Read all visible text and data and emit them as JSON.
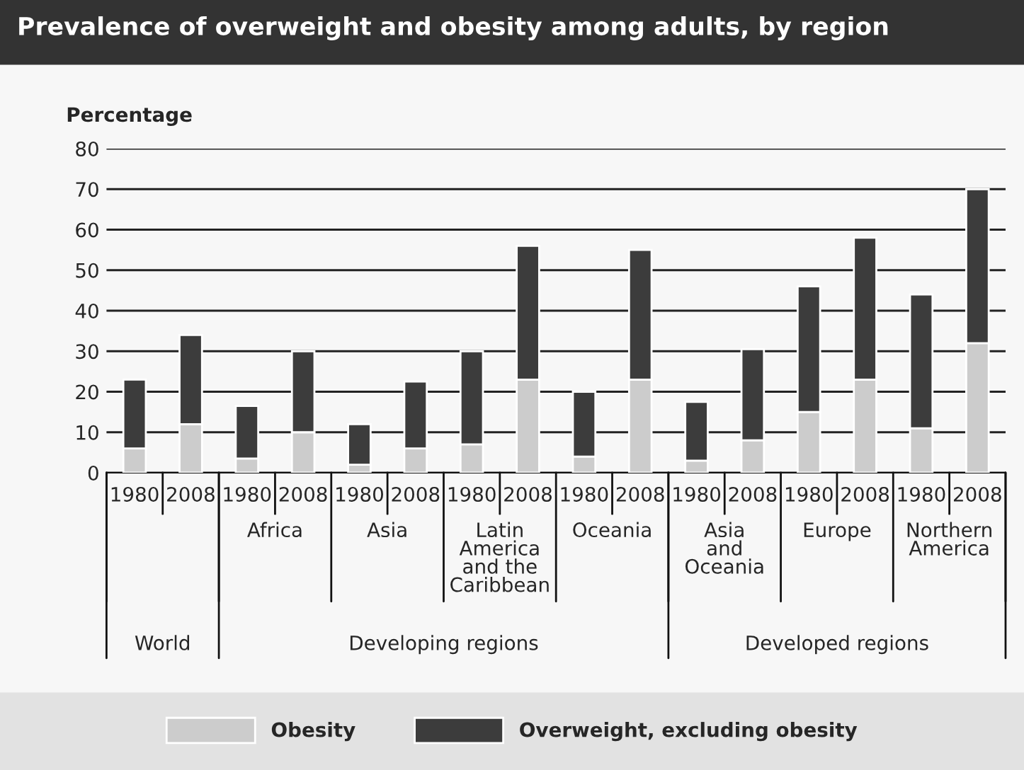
{
  "chart_data": {
    "type": "bar",
    "title": "Prevalence of overweight and obesity among adults, by region",
    "ylabel": "Percentage",
    "categories": [
      "1980",
      "2008",
      "1980",
      "2008",
      "1980",
      "2008",
      "1980",
      "2008",
      "1980",
      "2008",
      "1980",
      "2008",
      "1980",
      "2008",
      "1980",
      "2008"
    ],
    "stacked": true,
    "series": [
      {
        "name": "Obesity",
        "color": "#cccccc",
        "values": [
          6,
          12,
          3.5,
          10,
          2,
          6,
          7,
          23,
          4,
          23,
          3,
          8,
          15,
          23,
          11,
          32
        ]
      },
      {
        "name": "Overweight, excluding obesity",
        "color": "#3c3c3c",
        "values": [
          17,
          22,
          13,
          20,
          10,
          16.5,
          23,
          33,
          16,
          32,
          14.5,
          22.5,
          31,
          35,
          33,
          38
        ]
      }
    ],
    "ylim": [
      0,
      80
    ],
    "yticks": [
      0,
      10,
      20,
      30,
      40,
      50,
      60,
      70,
      80
    ],
    "grid": "y",
    "legend": "bottom",
    "annotations": [
      "World",
      "Africa",
      "Asia",
      "Latin\nAmerica\nand the\nCaribbean",
      "Oceania",
      "Asia\nand\nOceania",
      "Europe",
      "Northern\nAmerica",
      "Developing regions",
      "Developed regions"
    ]
  }
}
